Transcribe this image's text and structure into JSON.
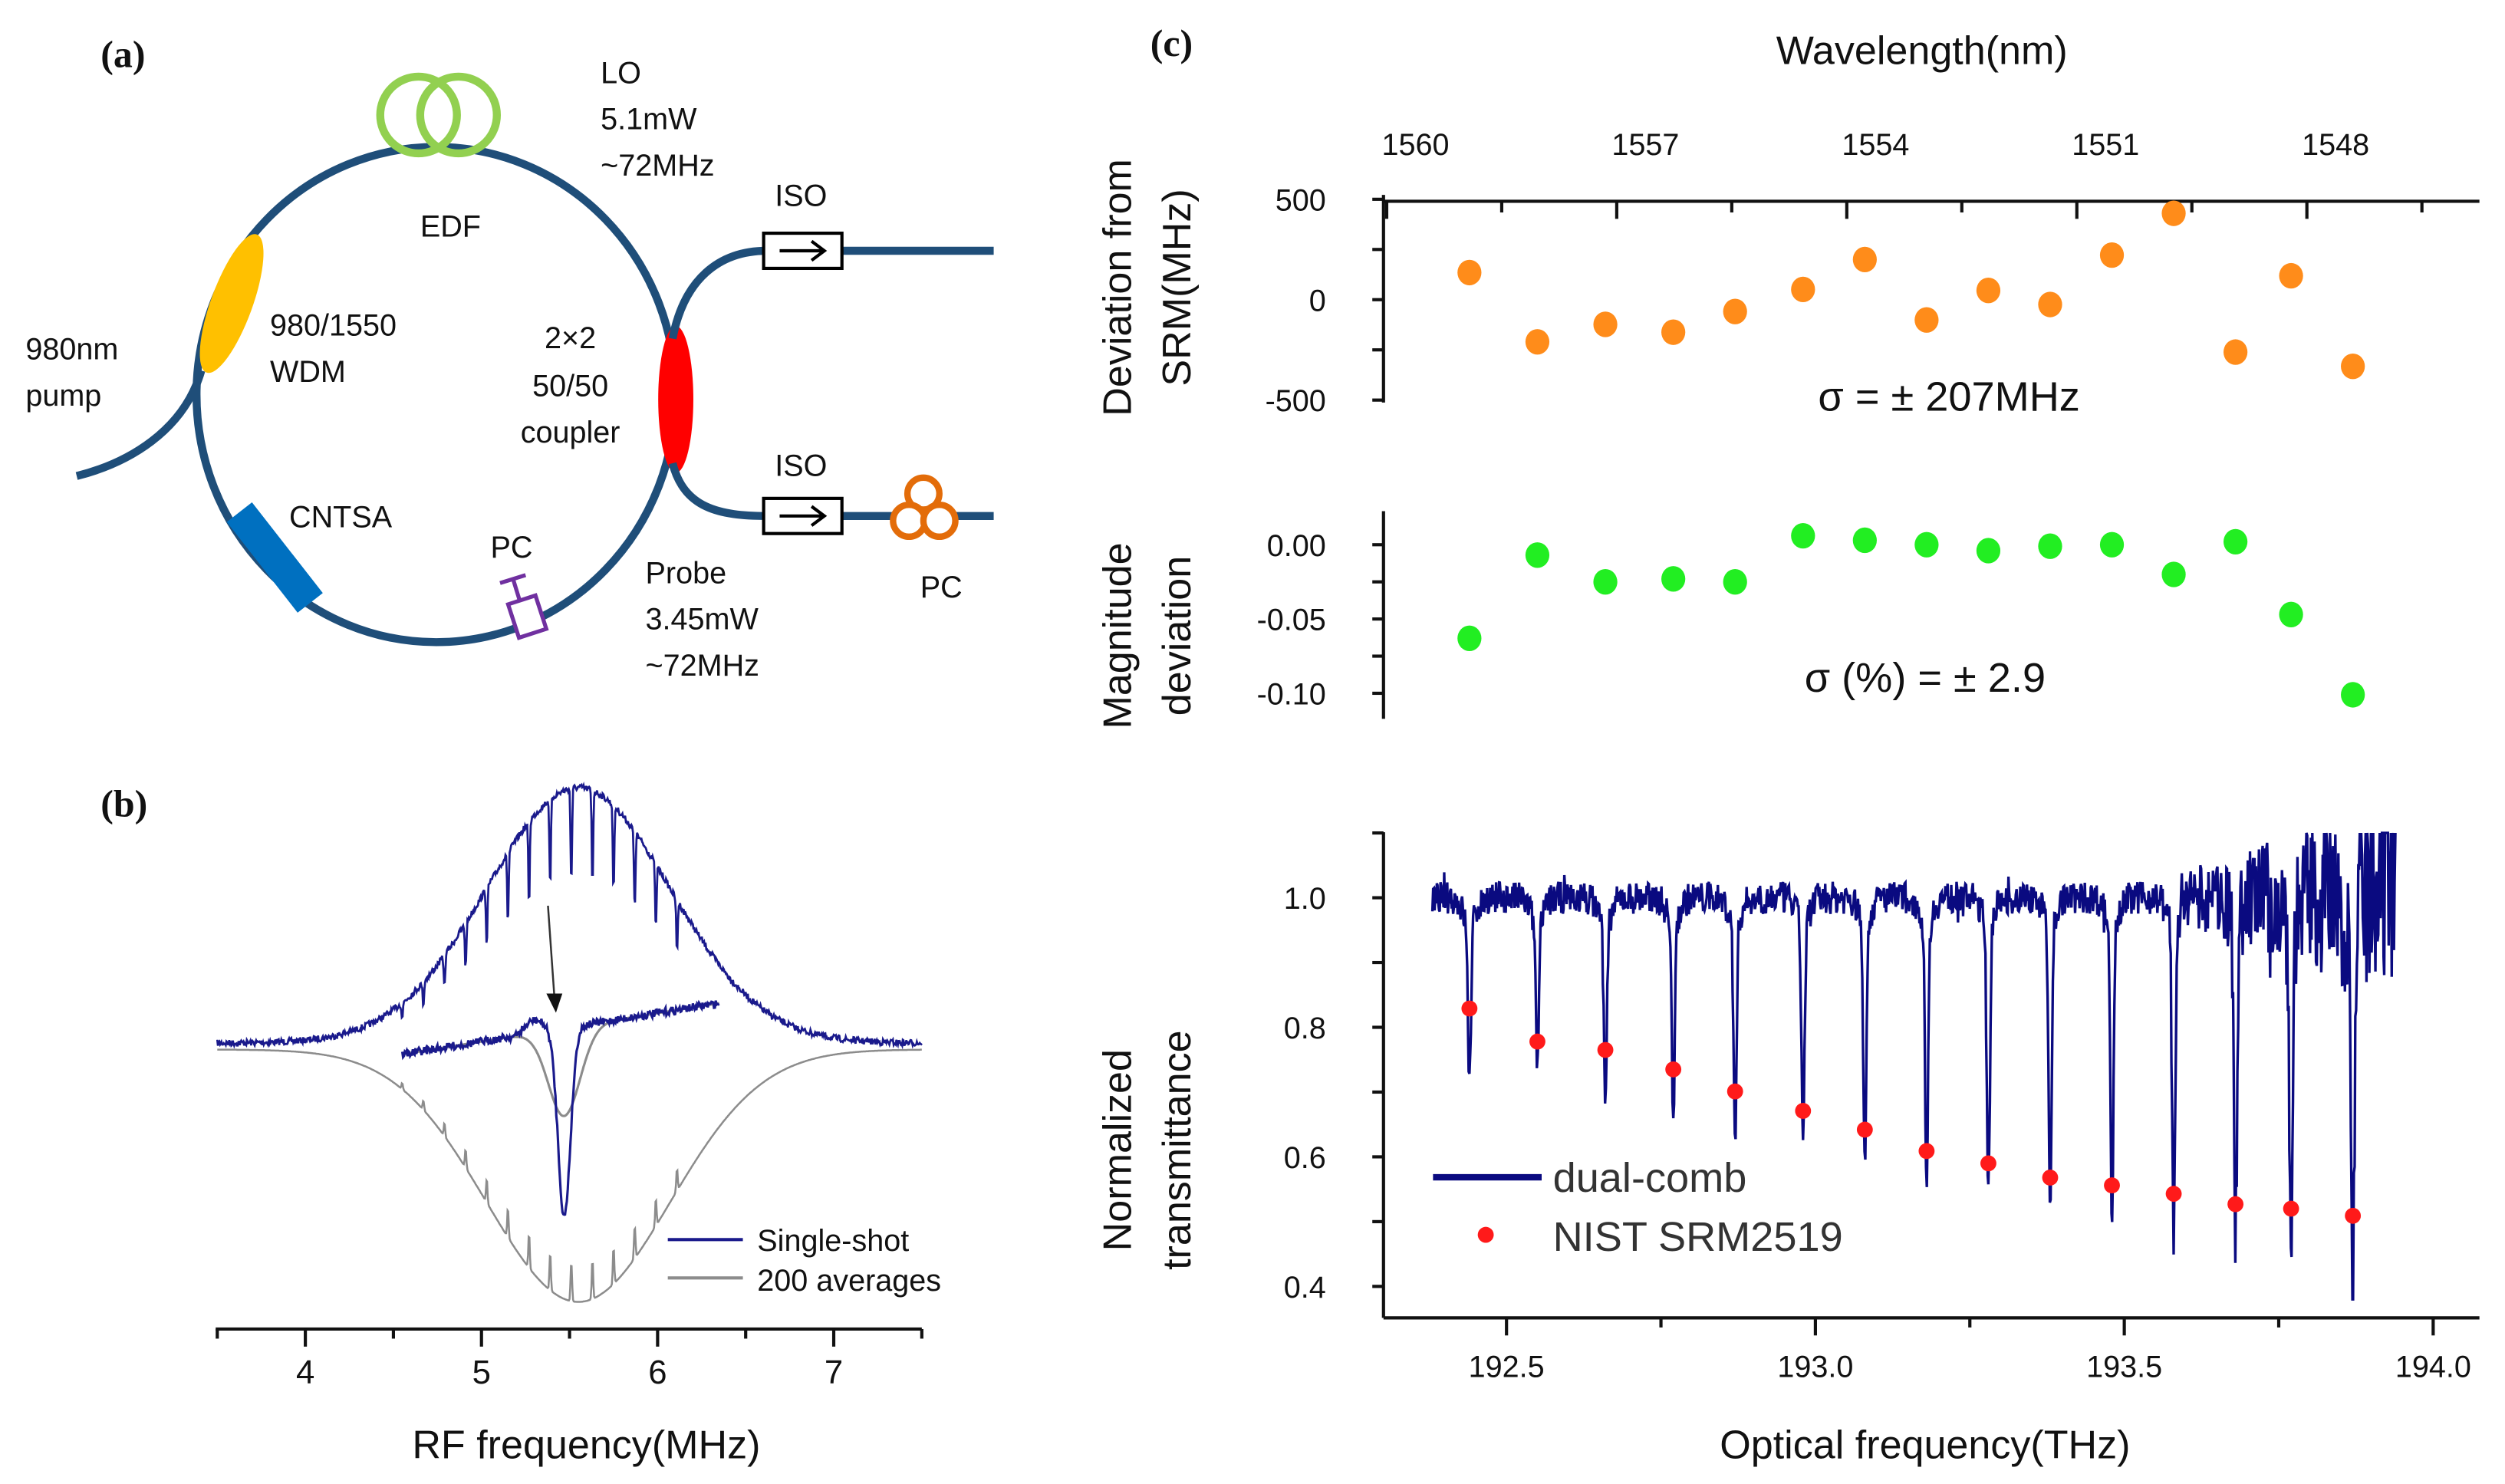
{
  "panel_a": {
    "label": "(a)",
    "labels": {
      "lo": "LO",
      "lo_power": "5.1mW",
      "lo_rate": "~72MHz",
      "edf": "EDF",
      "iso_top": "ISO",
      "iso_bottom": "ISO",
      "wdm_1": "980/1550",
      "wdm_2": "WDM",
      "pump_1": "980nm",
      "pump_2": "pump",
      "coupler_1": "2×2",
      "coupler_2": "50/50",
      "coupler_3": "coupler",
      "cntsa": "CNTSA",
      "pc_ring": "PC",
      "probe": "Probe",
      "probe_power": "3.45mW",
      "probe_rate": "~72MHz",
      "pc_out": "PC"
    },
    "colors": {
      "fiber": "#1f4e79",
      "edf": "#92d050",
      "wdm": "#ffc000",
      "coupler": "#ff0000",
      "cntsa": "#0070c0",
      "pc_ring": "#7030a0",
      "pc_out": "#e36c09"
    }
  },
  "panel_b": {
    "label": "(b)"
  },
  "panel_c": {
    "label": "(c)",
    "sigma_freq": "σ = ± 207MHz",
    "sigma_mag": "σ (%) = ± 2.9"
  },
  "chart_data": [
    {
      "id": "b",
      "type": "line",
      "xlabel": "RF frequency(MHz)",
      "xlim": [
        3.5,
        7.5
      ],
      "xticks": [
        "4",
        "5",
        "6",
        "7"
      ],
      "series": [
        {
          "name": "Single-shot",
          "color": "#1a1a8c"
        },
        {
          "name": "200 averages",
          "color": "#8c8c8c"
        }
      ],
      "legend": "bottom-right"
    },
    {
      "id": "c-top",
      "type": "scatter",
      "ylabel": [
        "Deviation from",
        "SRM(MHz)"
      ],
      "top_xlabel": "Wavelength(nm)",
      "top_xticks": [
        "1560",
        "1557",
        "1554",
        "1551",
        "1548"
      ],
      "ylim": [
        -500,
        500
      ],
      "yticks": [
        "500",
        "0",
        "-500"
      ],
      "color": "#ff8c1a",
      "x": [
        192.44,
        192.55,
        192.66,
        192.77,
        192.87,
        192.98,
        193.08,
        193.18,
        193.28,
        193.38,
        193.48,
        193.58,
        193.68,
        193.77,
        193.87
      ],
      "y": [
        135,
        -210,
        -123,
        -162,
        -59,
        51,
        200,
        -101,
        46,
        -24,
        222,
        430,
        -261,
        119,
        -332
      ]
    },
    {
      "id": "c-mid",
      "type": "scatter",
      "ylabel": [
        "Magnitude",
        "deviation"
      ],
      "ylim": [
        -0.1,
        0.0
      ],
      "yticks": [
        "0.00",
        "-0.05",
        "-0.10"
      ],
      "color": "#22ee22",
      "x": [
        192.44,
        192.55,
        192.66,
        192.77,
        192.87,
        192.98,
        193.08,
        193.18,
        193.28,
        193.38,
        193.48,
        193.58,
        193.68,
        193.77,
        193.87
      ],
      "y": [
        -0.063,
        -0.007,
        -0.025,
        -0.023,
        -0.025,
        0.006,
        0.003,
        0.0,
        -0.004,
        -0.001,
        0.0,
        -0.02,
        0.002,
        -0.047,
        -0.101
      ]
    },
    {
      "id": "c-bottom",
      "type": "line",
      "xlabel": "Optical frequency(THz)",
      "ylabel": [
        "Normalized",
        "transmittance"
      ],
      "xlim": [
        192.3,
        194.07
      ],
      "ylim": [
        0.35,
        1.1
      ],
      "xticks": [
        "192.5",
        "193.0",
        "193.5",
        "194.0"
      ],
      "yticks": [
        "1.0",
        "0.8",
        "0.6",
        "0.4"
      ],
      "legend": "bottom-left",
      "series": [
        {
          "name": "dual-comb",
          "color": "#0a0a80",
          "line_centers": [
            192.44,
            192.55,
            192.66,
            192.77,
            192.87,
            192.98,
            193.08,
            193.18,
            193.28,
            193.38,
            193.48,
            193.58,
            193.68,
            193.77,
            193.87
          ],
          "line_minima": [
            0.76,
            0.78,
            0.735,
            0.71,
            0.675,
            0.67,
            0.64,
            0.61,
            0.59,
            0.565,
            0.555,
            0.52,
            0.525,
            0.47,
            0.405
          ]
        },
        {
          "name": "NIST SRM2519",
          "color": "#ff1a1a",
          "x": [
            192.44,
            192.55,
            192.66,
            192.77,
            192.87,
            192.98,
            193.08,
            193.18,
            193.28,
            193.38,
            193.48,
            193.58,
            193.68,
            193.77,
            193.87
          ],
          "y": [
            0.829,
            0.778,
            0.765,
            0.735,
            0.701,
            0.671,
            0.642,
            0.609,
            0.59,
            0.568,
            0.556,
            0.543,
            0.527,
            0.52,
            0.509
          ]
        }
      ]
    }
  ]
}
